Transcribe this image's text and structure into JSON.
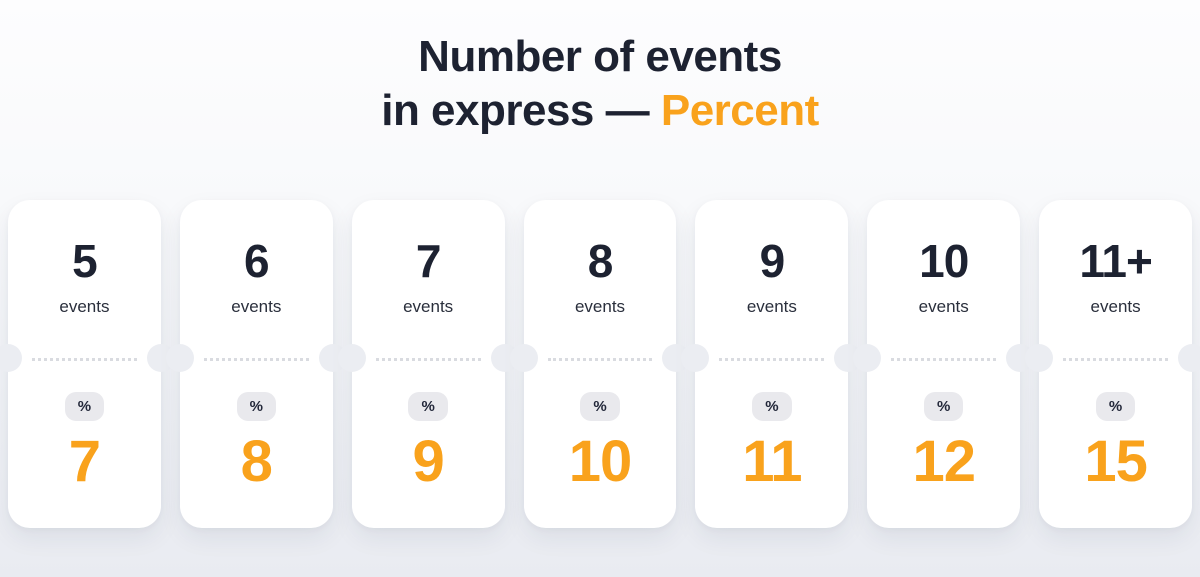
{
  "title": {
    "line1": "Number of events",
    "line2_prefix": "in express — ",
    "line2_highlight": "Percent"
  },
  "colors": {
    "accent_orange": "#F9A21C",
    "dark_navy": "#1D2231",
    "badge_background": "#E9E9ED",
    "page_background_bottom": "#E9EBF1",
    "card_background": "#FFFFFF"
  },
  "cards": [
    {
      "count": "5",
      "unit": "events",
      "badge": "%",
      "percent": "7"
    },
    {
      "count": "6",
      "unit": "events",
      "badge": "%",
      "percent": "8"
    },
    {
      "count": "7",
      "unit": "events",
      "badge": "%",
      "percent": "9"
    },
    {
      "count": "8",
      "unit": "events",
      "badge": "%",
      "percent": "10"
    },
    {
      "count": "9",
      "unit": "events",
      "badge": "%",
      "percent": "11"
    },
    {
      "count": "10",
      "unit": "events",
      "badge": "%",
      "percent": "12"
    },
    {
      "count": "11+",
      "unit": "events",
      "badge": "%",
      "percent": "15"
    }
  ],
  "chart_data": {
    "type": "table",
    "title": "Number of events in express — Percent",
    "categories": [
      "5",
      "6",
      "7",
      "8",
      "9",
      "10",
      "11+"
    ],
    "category_unit": "events",
    "values": [
      7,
      8,
      9,
      10,
      11,
      12,
      15
    ],
    "value_unit": "%",
    "layout": "7 ticket-style cards in a horizontal row, count on top, percent below dotted divider"
  }
}
